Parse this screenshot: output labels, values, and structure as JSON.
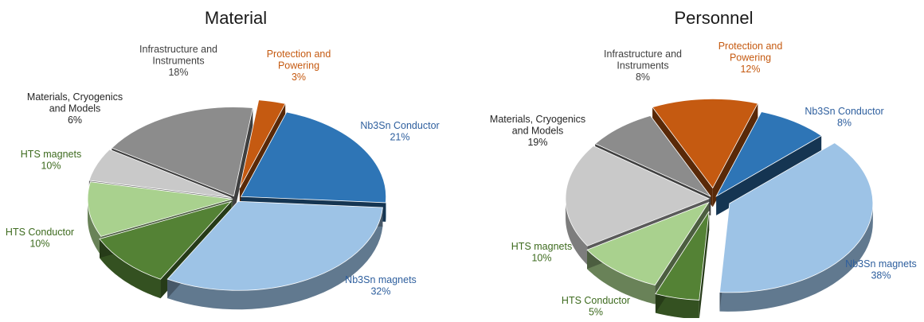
{
  "chart_data": [
    {
      "type": "pie",
      "title": "Material",
      "slices": [
        {
          "label": "Nb3Sn Conductor",
          "value": 21,
          "value_label": "21%",
          "color": "#2e75b6",
          "label_color": "#2e5f9e"
        },
        {
          "label": "Nb3Sn magnets",
          "value": 32,
          "value_label": "32%",
          "color": "#9dc3e6",
          "label_color": "#2e5f9e"
        },
        {
          "label": "HTS Conductor",
          "value": 10,
          "value_label": "10%",
          "color": "#548235",
          "label_color": "#3e6b1f"
        },
        {
          "label": "HTS magnets",
          "value": 10,
          "value_label": "10%",
          "color": "#a9d18e",
          "label_color": "#3e6b1f"
        },
        {
          "label": "Materials, Cryogenics and Models",
          "value": 6,
          "value_label": "6%",
          "color": "#c9c9c9",
          "label_color": "#262626"
        },
        {
          "label": "Infrastructure and Instruments",
          "value": 18,
          "value_label": "18%",
          "color": "#8c8c8c",
          "label_color": "#404040"
        },
        {
          "label": "Protection and Powering",
          "value": 3,
          "value_label": "3%",
          "color": "#c55a11",
          "label_color": "#c55a11"
        }
      ]
    },
    {
      "type": "pie",
      "title": "Personnel",
      "slices": [
        {
          "label": "Nb3Sn Conductor",
          "value": 8,
          "value_label": "8%",
          "color": "#2e75b6",
          "label_color": "#2e5f9e"
        },
        {
          "label": "Nb3Sn magnets",
          "value": 38,
          "value_label": "38%",
          "color": "#9dc3e6",
          "label_color": "#2e5f9e"
        },
        {
          "label": "HTS Conductor",
          "value": 5,
          "value_label": "5%",
          "color": "#548235",
          "label_color": "#3e6b1f"
        },
        {
          "label": "HTS magnets",
          "value": 10,
          "value_label": "10%",
          "color": "#a9d18e",
          "label_color": "#3e6b1f"
        },
        {
          "label": "Materials, Cryogenics and Models",
          "value": 19,
          "value_label": "19%",
          "color": "#c9c9c9",
          "label_color": "#262626"
        },
        {
          "label": "Infrastructure and Instruments",
          "value": 8,
          "value_label": "8%",
          "color": "#8c8c8c",
          "label_color": "#404040"
        },
        {
          "label": "Protection and Powering",
          "value": 12,
          "value_label": "12%",
          "color": "#c55a11",
          "label_color": "#c55a11"
        }
      ]
    }
  ]
}
